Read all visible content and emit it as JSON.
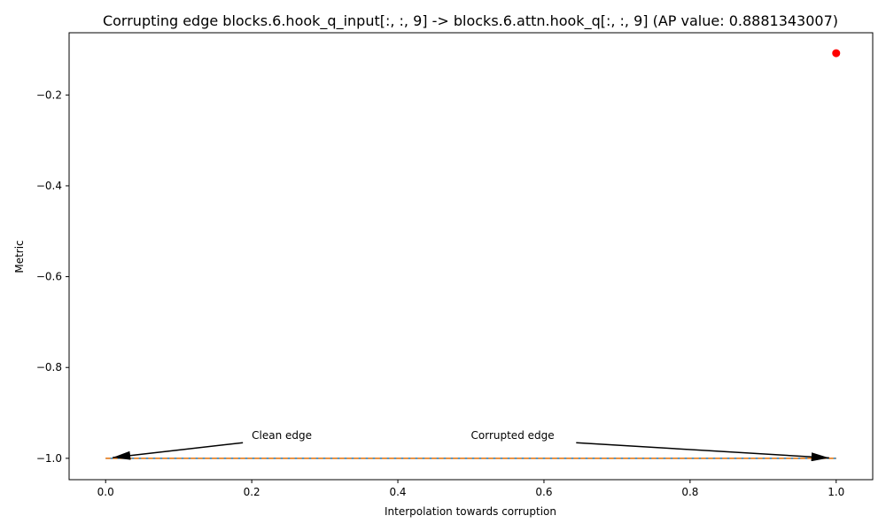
{
  "chart_data": {
    "type": "line",
    "title": "Corrupting edge blocks.6.hook_q_input[:, :, 9] -> blocks.6.attn.hook_q[:, :, 9] (AP value: 0.8881343007)",
    "xlabel": "Interpolation towards corruption",
    "ylabel": "Metric",
    "xlim": [
      -0.05,
      1.05
    ],
    "ylim": [
      -1.047,
      -0.063
    ],
    "xticks": [
      0.0,
      0.2,
      0.4,
      0.6,
      0.8,
      1.0
    ],
    "xtick_labels": [
      "0.0",
      "0.2",
      "0.4",
      "0.6",
      "0.8",
      "1.0"
    ],
    "yticks": [
      -1.0,
      -0.8,
      -0.6,
      -0.4,
      -0.2
    ],
    "ytick_labels": [
      "−1.0",
      "−0.8",
      "−0.6",
      "−0.4",
      "−0.2"
    ],
    "grid": false,
    "series": [
      {
        "color": "#1f77b4",
        "style": "solid",
        "x": [
          0.0,
          1.0
        ],
        "y": [
          -1.0,
          -1.0
        ]
      },
      {
        "color": "#ff7f0e",
        "style": "dashed",
        "x": [
          0.0,
          1.0
        ],
        "y": [
          -1.0,
          -1.0
        ]
      }
    ],
    "points": [
      {
        "x": 1.0,
        "y": -0.108,
        "color": "#ff0000"
      }
    ],
    "annotations": [
      {
        "text": "Clean edge",
        "text_x": 0.2,
        "text_y": -0.95,
        "target_x": 0.0,
        "target_y": -1.0
      },
      {
        "text": "Corrupted edge",
        "text_x": 0.5,
        "text_y": -0.95,
        "target_x": 1.0,
        "target_y": -1.0
      }
    ]
  }
}
